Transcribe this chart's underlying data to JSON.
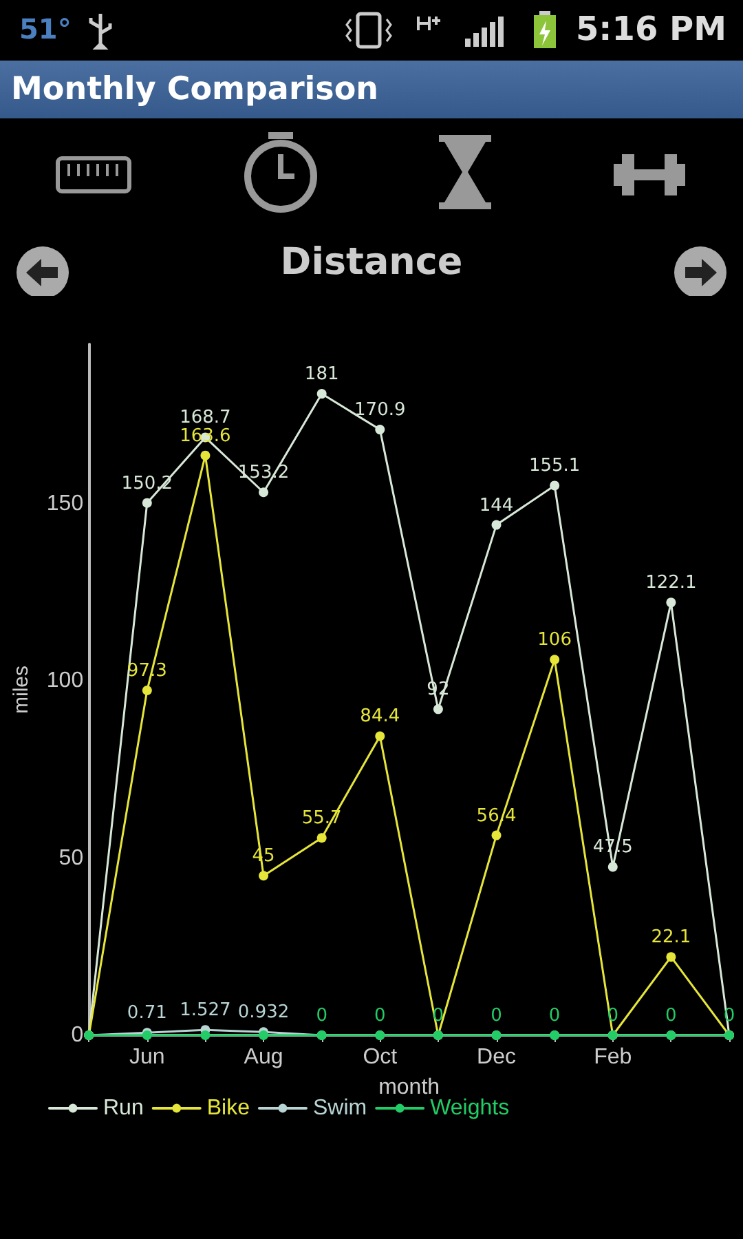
{
  "chart_data": {
    "type": "line",
    "title": "Monthly Comparison",
    "subtitle": "Distance",
    "xlabel": "month",
    "ylabel": "miles",
    "annotations": [
      "51°",
      "5:16 PM"
    ],
    "categories": [
      null,
      "Jun",
      null,
      "Aug",
      null,
      "Oct",
      null,
      "Dec",
      null,
      "Feb",
      null,
      null
    ],
    "ylim": [
      0,
      195
    ],
    "yticks": [
      0,
      50,
      100,
      150
    ],
    "grid": false,
    "legend": "bottom left",
    "marker": "circle",
    "line_style": "solid",
    "series": [
      {
        "name": "Run",
        "color": "#d8e8d8",
        "values": [
          0,
          150.2,
          168.7,
          153.2,
          181,
          170.9,
          92,
          144,
          155.1,
          47.5,
          122.1,
          0
        ],
        "value_labels": [
          null,
          "150.2",
          "168.7",
          "153.2",
          "181",
          "170.9",
          "92",
          "144",
          "155.1",
          "47.5",
          "122.1",
          null
        ]
      },
      {
        "name": "Bike",
        "color": "#e5e53a",
        "values": [
          0,
          97.3,
          163.6,
          45,
          55.7,
          84.4,
          0,
          56.4,
          106,
          0,
          22.1,
          0
        ],
        "value_labels": [
          null,
          "97.3",
          "163.6",
          "45",
          "55.7",
          "84.4",
          null,
          "56.4",
          "106",
          null,
          "22.1",
          null
        ]
      },
      {
        "name": "Swim",
        "color": "#b8d4d4",
        "values": [
          0,
          0.71,
          1.527,
          0.932,
          0,
          0,
          0,
          0,
          0,
          0,
          0,
          0
        ],
        "value_labels": [
          null,
          "0.71",
          "1.527",
          "0.932",
          null,
          null,
          null,
          null,
          null,
          null,
          null,
          null
        ]
      },
      {
        "name": "Weights",
        "color": "#22cc66",
        "values": [
          0,
          0,
          0,
          0,
          0,
          0,
          0,
          0,
          0,
          0,
          0,
          0
        ],
        "value_labels": [
          null,
          null,
          null,
          null,
          "0",
          "0",
          "0",
          "0",
          "0",
          "0",
          "0",
          "0"
        ]
      }
    ]
  }
}
